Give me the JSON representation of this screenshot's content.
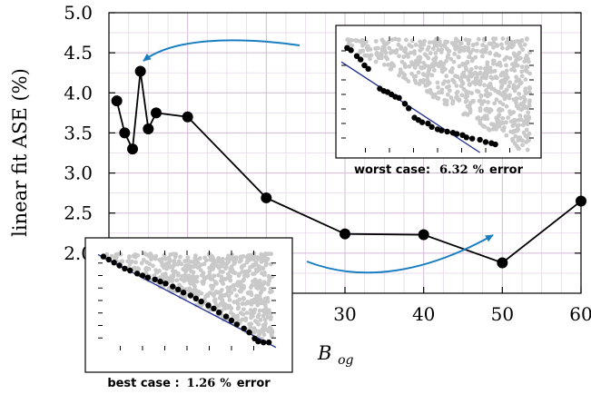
{
  "chart_data": {
    "type": "line",
    "title": "",
    "xlabel": "B",
    "xlabel_sub": "og",
    "ylabel": "linear fit ASE (%)",
    "xlim": [
      0,
      60
    ],
    "ylim": [
      1.5,
      5.0
    ],
    "xticks": [
      30,
      40,
      50,
      60
    ],
    "yticks": [
      2.0,
      2.5,
      3.0,
      3.5,
      4.0,
      4.5,
      5.0
    ],
    "x": [
      1,
      2,
      3,
      4,
      5,
      6,
      10,
      20,
      30,
      40,
      50,
      60
    ],
    "y": [
      3.9,
      3.5,
      3.3,
      4.27,
      3.55,
      3.75,
      3.7,
      2.69,
      2.24,
      2.23,
      1.88,
      2.65
    ],
    "grid": true,
    "insets": [
      {
        "name": "worst-case",
        "caption_prefix": "worst case:",
        "caption_value": "6.32",
        "caption_unit": "%",
        "caption_suffix": "error",
        "points": [
          [
            0.03,
            0.9
          ],
          [
            0.05,
            0.88
          ],
          [
            0.08,
            0.83
          ],
          [
            0.1,
            0.8
          ],
          [
            0.12,
            0.75
          ],
          [
            0.14,
            0.72
          ],
          [
            0.2,
            0.55
          ],
          [
            0.22,
            0.53
          ],
          [
            0.24,
            0.52
          ],
          [
            0.26,
            0.5
          ],
          [
            0.28,
            0.48
          ],
          [
            0.3,
            0.47
          ],
          [
            0.33,
            0.42
          ],
          [
            0.35,
            0.38
          ],
          [
            0.38,
            0.3
          ],
          [
            0.4,
            0.28
          ],
          [
            0.42,
            0.26
          ],
          [
            0.45,
            0.25
          ],
          [
            0.47,
            0.22
          ],
          [
            0.5,
            0.2
          ],
          [
            0.52,
            0.19
          ],
          [
            0.55,
            0.18
          ],
          [
            0.58,
            0.17
          ],
          [
            0.6,
            0.16
          ],
          [
            0.63,
            0.15
          ],
          [
            0.65,
            0.13
          ],
          [
            0.68,
            0.12
          ],
          [
            0.72,
            0.11
          ],
          [
            0.75,
            0.09
          ],
          [
            0.78,
            0.08
          ],
          [
            0.8,
            0.07
          ]
        ],
        "fit": [
          [
            0.0,
            0.78
          ],
          [
            0.72,
            0.0
          ]
        ]
      },
      {
        "name": "best-case",
        "caption_prefix": "best case :",
        "caption_value": "1.26",
        "caption_unit": "%",
        "caption_suffix": "error",
        "points": [
          [
            0.03,
            0.94
          ],
          [
            0.06,
            0.91
          ],
          [
            0.09,
            0.88
          ],
          [
            0.12,
            0.85
          ],
          [
            0.15,
            0.82
          ],
          [
            0.18,
            0.8
          ],
          [
            0.22,
            0.77
          ],
          [
            0.25,
            0.75
          ],
          [
            0.28,
            0.73
          ],
          [
            0.32,
            0.71
          ],
          [
            0.35,
            0.69
          ],
          [
            0.38,
            0.67
          ],
          [
            0.42,
            0.64
          ],
          [
            0.45,
            0.61
          ],
          [
            0.48,
            0.58
          ],
          [
            0.52,
            0.55
          ],
          [
            0.55,
            0.52
          ],
          [
            0.58,
            0.49
          ],
          [
            0.62,
            0.45
          ],
          [
            0.65,
            0.42
          ],
          [
            0.68,
            0.38
          ],
          [
            0.72,
            0.34
          ],
          [
            0.75,
            0.3
          ],
          [
            0.78,
            0.26
          ],
          [
            0.82,
            0.22
          ],
          [
            0.85,
            0.18
          ],
          [
            0.88,
            0.12
          ],
          [
            0.9,
            0.09
          ],
          [
            0.93,
            0.08
          ],
          [
            0.96,
            0.08
          ]
        ],
        "fit": [
          [
            0.0,
            0.96
          ],
          [
            1.0,
            0.03
          ]
        ]
      }
    ]
  }
}
